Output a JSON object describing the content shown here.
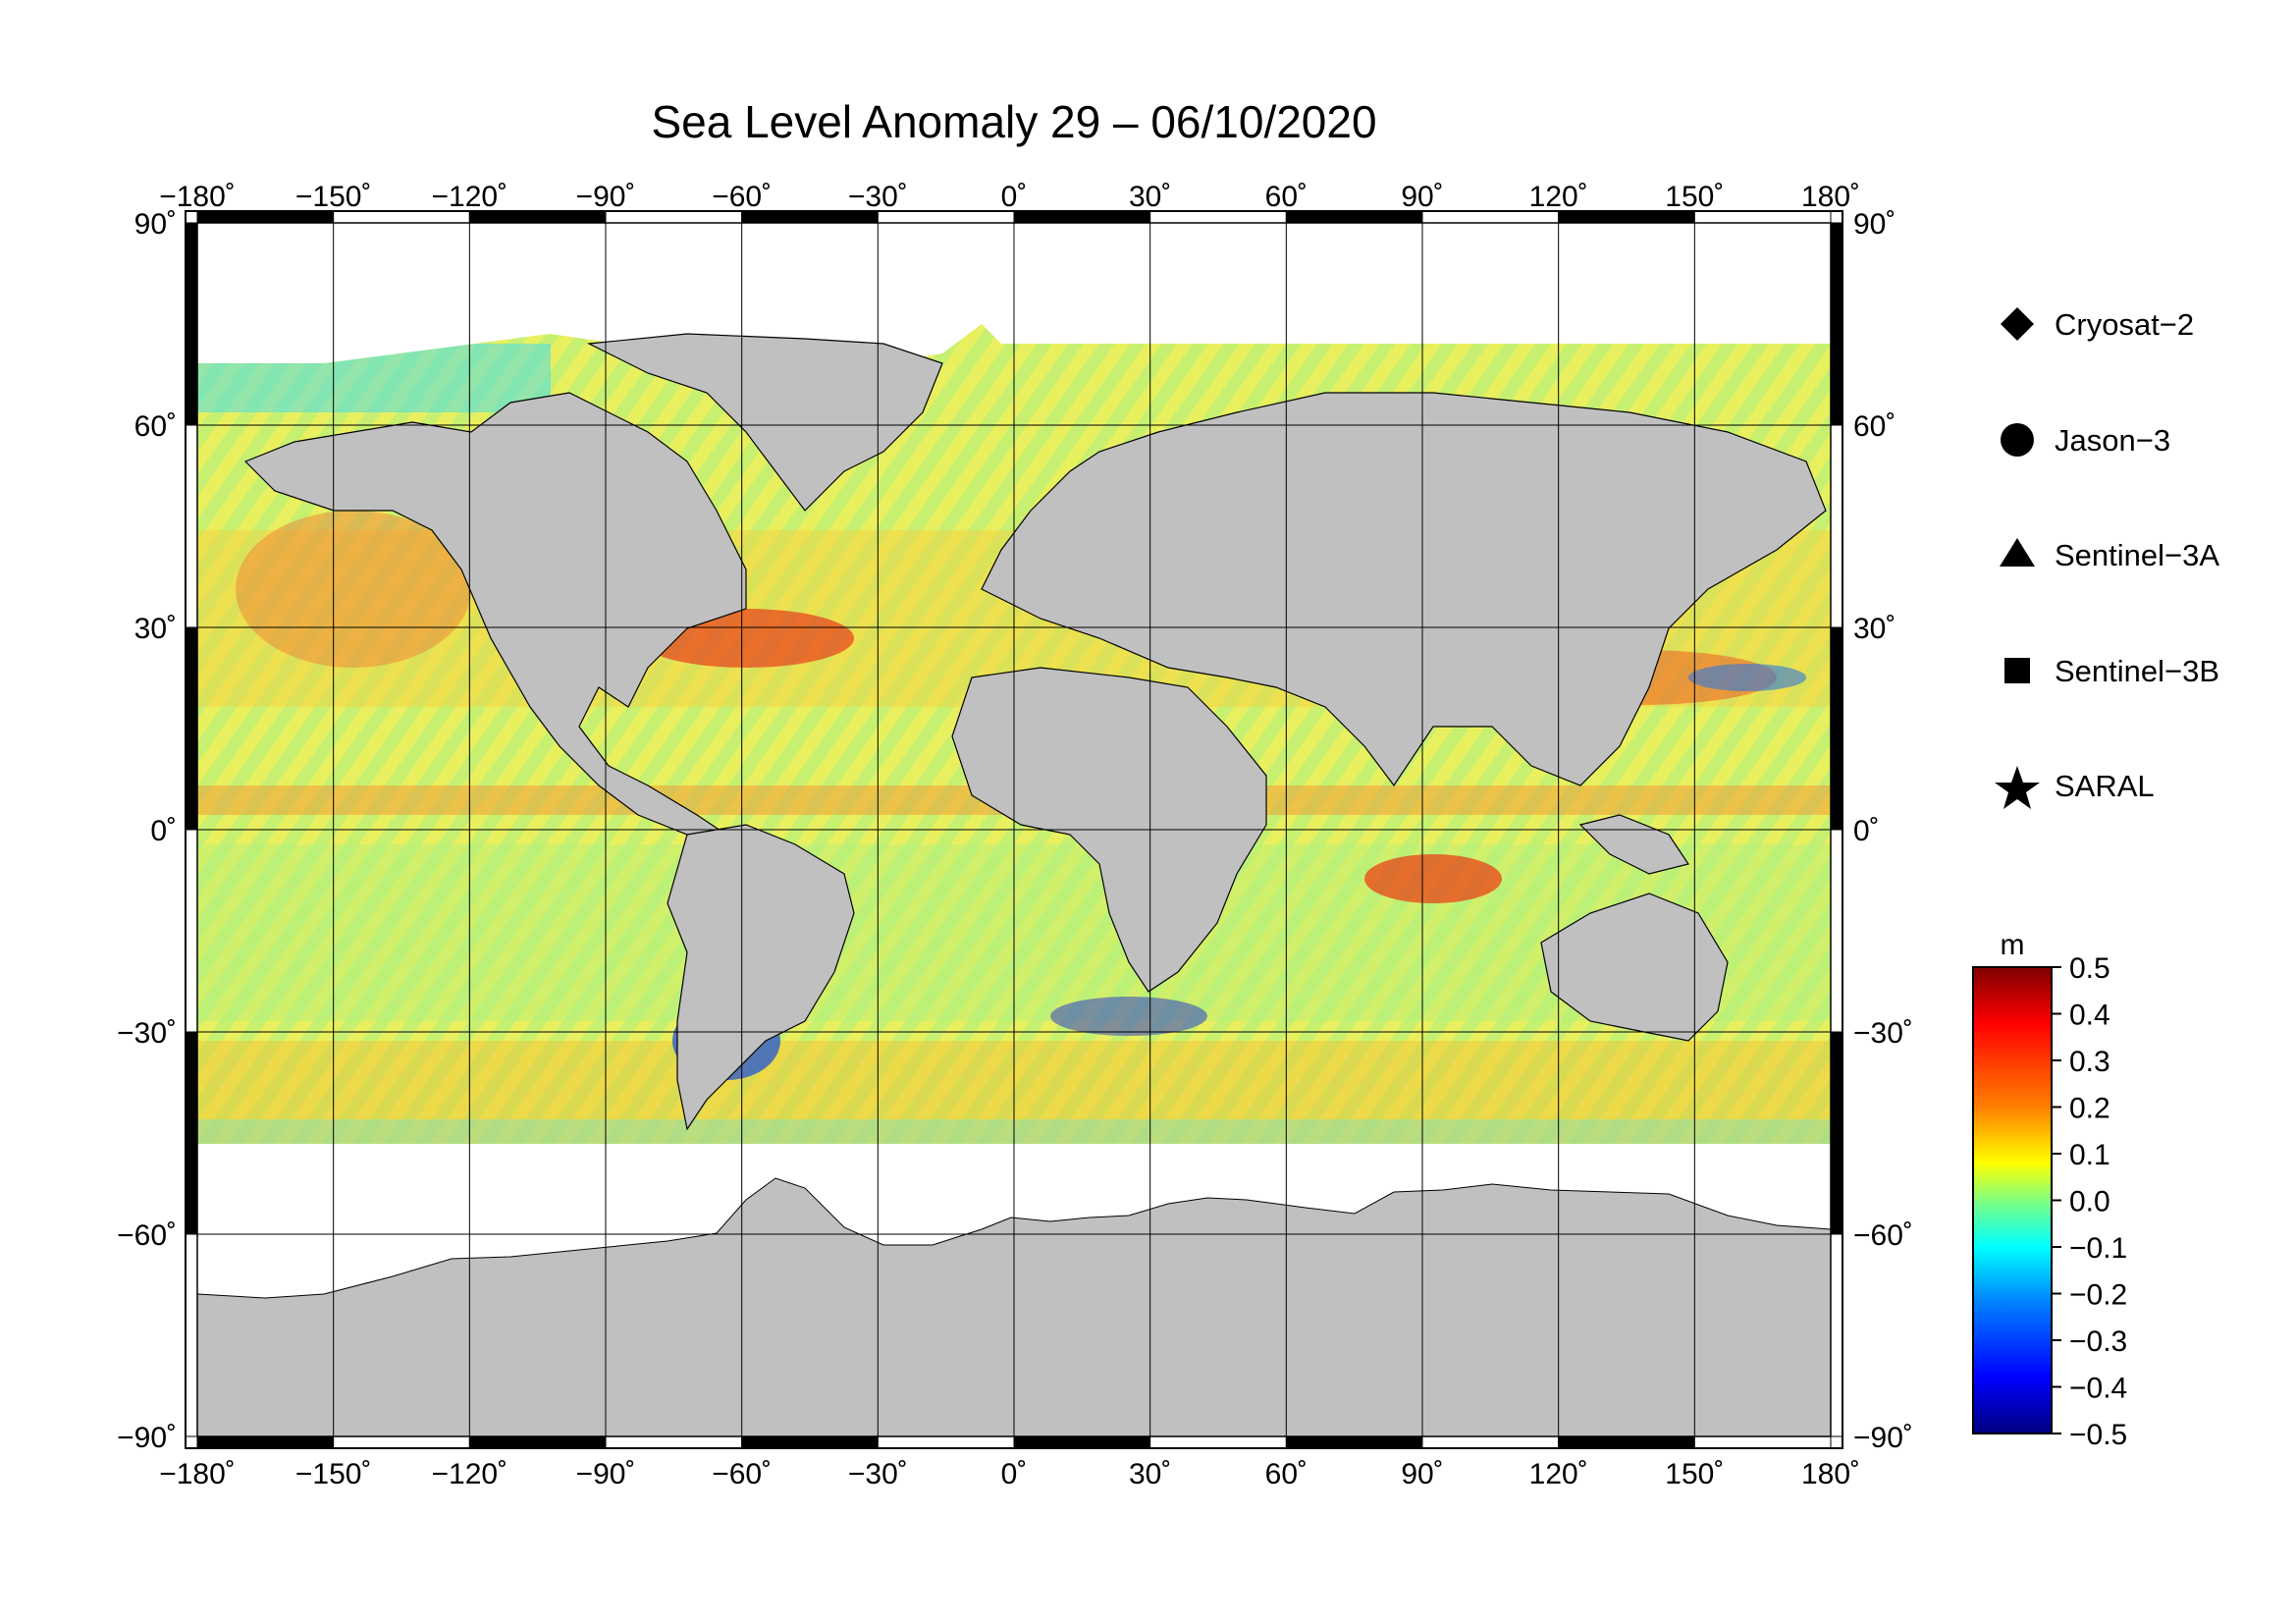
{
  "title": "Sea Level Anomaly 29 – 06/10/2020",
  "map": {
    "projection": "equirectangular",
    "lon_range": [
      -180,
      180
    ],
    "lat_range": [
      -90,
      90
    ],
    "grid": true,
    "land_color": "#c0c0c0",
    "ice_color": "#ffffff",
    "lon_ticks": [
      "−180˚",
      "−150˚",
      "−120˚",
      "−90˚",
      "−60˚",
      "−30˚",
      "0˚",
      "30˚",
      "60˚",
      "90˚",
      "120˚",
      "150˚",
      "180˚"
    ],
    "lat_ticks": [
      "90˚",
      "60˚",
      "30˚",
      "0˚",
      "−30˚",
      "−60˚",
      "−90˚"
    ]
  },
  "legend": {
    "placement": "right",
    "items": [
      {
        "label": "Cryosat−2",
        "symbol": "diamond"
      },
      {
        "label": "Jason−3",
        "symbol": "circle"
      },
      {
        "label": "Sentinel−3A",
        "symbol": "triangle"
      },
      {
        "label": "Sentinel−3B",
        "symbol": "square"
      },
      {
        "label": "SARAL",
        "symbol": "star"
      }
    ]
  },
  "colorbar": {
    "unit": "m",
    "min": -0.5,
    "max": 0.5,
    "tick_labels": [
      "0.5",
      "0.4",
      "0.3",
      "0.2",
      "0.1",
      "0.0",
      "−0.1",
      "−0.2",
      "−0.3",
      "−0.4",
      "−0.5"
    ],
    "colors": [
      "#800000",
      "#ff0000",
      "#ff8000",
      "#ffff00",
      "#80ff80",
      "#00ffff",
      "#0080ff",
      "#0000ff",
      "#000080"
    ]
  }
}
